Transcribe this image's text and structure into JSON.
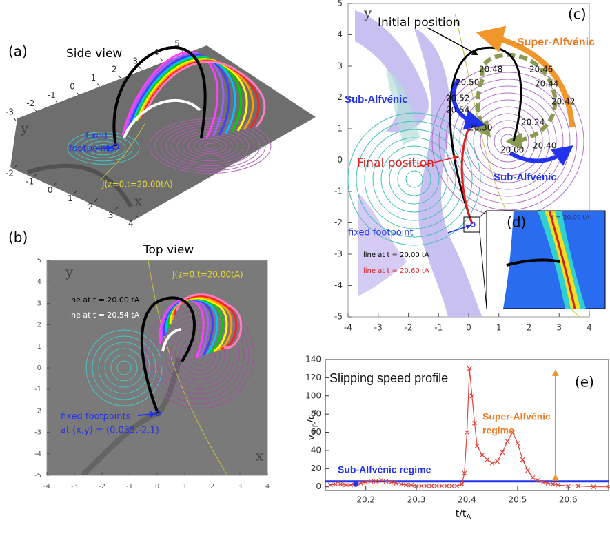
{
  "chart_data": [
    {
      "type": "perspective",
      "panel_label": "(a)",
      "title": "Side view",
      "x_label": "x",
      "y_label": "y",
      "xlim": [
        -2,
        4
      ],
      "ylim": [
        -3,
        5
      ],
      "xticks": [
        -2,
        -1,
        0,
        1,
        2,
        3,
        4
      ],
      "yticks": [
        -3,
        -2,
        -1,
        0,
        1,
        2,
        3,
        4,
        5
      ],
      "annotations": [
        "fixed",
        "footpoints",
        "J(z=0,t=20.00tA)"
      ]
    },
    {
      "type": "field",
      "panel_label": "(b)",
      "title": "Top view",
      "x_label": "x",
      "y_label": "y",
      "xlim": [
        -4,
        4
      ],
      "ylim": [
        -5,
        5
      ],
      "xticks": [
        -4,
        -3,
        -2,
        -1,
        0,
        1,
        2,
        3,
        4
      ],
      "yticks": [
        -5,
        -4,
        -3,
        -2,
        -1,
        0,
        1,
        2,
        3,
        4,
        5
      ],
      "annotations": [
        "J(z=0,t=20.00tA)",
        "line at t = 20.00 tA",
        "line at t = 20.54 tA",
        "fixed footpoints",
        "at (x,y) = (0.035,-2.1)"
      ]
    },
    {
      "type": "field",
      "panel_label": "(c)",
      "y_label": "y",
      "xlim": [
        -4,
        4
      ],
      "ylim": [
        -5,
        5
      ],
      "xticks": [
        -4,
        -3,
        -2,
        -1,
        0,
        1,
        2,
        3,
        4
      ],
      "yticks": [
        -5,
        -4,
        -3,
        -2,
        -1,
        0,
        1,
        2,
        3,
        4,
        5
      ],
      "annotations": [
        "Initial position",
        "Super-Alfvénic",
        "Sub-Alfvénic",
        "Sub-Alfvénic",
        "Final position",
        "fixed  footpoint",
        "line at t = 20.00 tA",
        "line at t = 20.60 tA"
      ],
      "time_labels": [
        "20.48",
        "20.46",
        "20.44",
        "20.42",
        "20.50",
        "20.52",
        "20.54",
        "20.30",
        "20.24",
        "20.00",
        "20.40"
      ],
      "inset_label": "(d)",
      "inset_text": "t = 20.00 tA"
    },
    {
      "type": "line",
      "panel_label": "(e)",
      "title": "Slipping speed profile",
      "y_label": [
        "v",
        "slip",
        "/c",
        "A"
      ],
      "x_label": [
        "t/t",
        "A"
      ],
      "annotations": [
        "Super-Alfvénic",
        "regime",
        "Sub-Alfvénic regime"
      ],
      "xlim": [
        20.12,
        20.68
      ],
      "ylim": [
        -4,
        140
      ],
      "xticks": [
        20.2,
        20.3,
        20.4,
        20.5,
        20.6
      ],
      "yticks": [
        0,
        20,
        40,
        60,
        80,
        100,
        120,
        140
      ],
      "x": [
        20.13,
        20.14,
        20.15,
        20.16,
        20.17,
        20.18,
        20.19,
        20.2,
        20.21,
        20.22,
        20.23,
        20.24,
        20.25,
        20.26,
        20.27,
        20.28,
        20.29,
        20.3,
        20.31,
        20.32,
        20.33,
        20.34,
        20.35,
        20.36,
        20.37,
        20.38,
        20.39,
        20.395,
        20.4,
        20.405,
        20.41,
        20.415,
        20.42,
        20.43,
        20.44,
        20.45,
        20.46,
        20.47,
        20.48,
        20.49,
        20.5,
        20.51,
        20.52,
        20.53,
        20.54,
        20.55,
        20.56,
        20.57,
        20.58,
        20.6,
        20.62,
        20.65,
        20.68
      ],
      "series": [
        {
          "color": "#e0443c",
          "values": [
            2,
            3,
            3,
            2,
            2,
            3,
            4,
            5,
            6,
            6,
            7,
            6,
            5,
            4,
            3,
            2,
            2,
            1,
            1,
            1,
            1,
            1,
            1,
            1,
            1,
            1,
            3,
            15,
            60,
            130,
            100,
            70,
            45,
            35,
            30,
            26,
            28,
            38,
            50,
            60,
            48,
            30,
            18,
            10,
            7,
            5,
            4,
            3,
            2,
            1,
            1,
            0,
            0
          ]
        }
      ],
      "hline": {
        "value": 6,
        "color": "#2233ee"
      },
      "arrow": {
        "x": 20.575,
        "y": [
          6,
          130
        ],
        "color": "#f0962a"
      },
      "highlight_point": {
        "x": 20.18,
        "y": 3,
        "color": "#2233ee"
      }
    }
  ]
}
